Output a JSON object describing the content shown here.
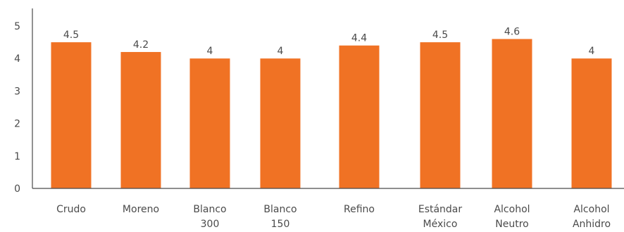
{
  "chart_data": {
    "type": "bar",
    "title": "",
    "xlabel": "",
    "ylabel": "",
    "ylim": [
      0,
      5
    ],
    "yticks": [
      "0",
      "1",
      "2",
      "3",
      "4",
      "5"
    ],
    "grid": false,
    "legend": "none",
    "bar_color": "#f07224",
    "categories": [
      [
        "Crudo"
      ],
      [
        "Moreno"
      ],
      [
        "Blanco",
        "300"
      ],
      [
        "Blanco",
        "150"
      ],
      [
        "Refino"
      ],
      [
        "Estándar",
        "México"
      ],
      [
        "Alcohol",
        "Neutro"
      ],
      [
        "Alcohol",
        "Anhidro"
      ]
    ],
    "values": [
      4.5,
      4.2,
      4,
      4,
      4.4,
      4.5,
      4.6,
      4
    ],
    "value_labels": [
      "4.5",
      "4.2",
      "4",
      "4",
      "4.4",
      "4.5",
      "4.6",
      "4"
    ]
  }
}
